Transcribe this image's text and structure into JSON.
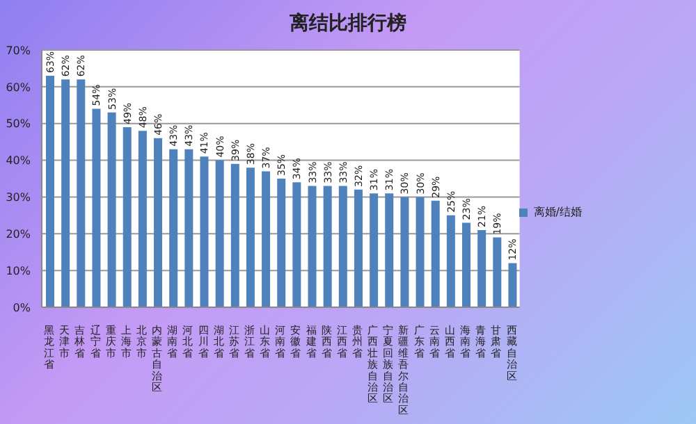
{
  "chart_data": {
    "type": "bar",
    "title": "离结比排行榜",
    "categories": [
      "黑龙江省",
      "天津市",
      "吉林省",
      "辽宁省",
      "重庆市",
      "上海市",
      "北京市",
      "内蒙古自治区",
      "湖南省",
      "河北省",
      "四川省",
      "湖北省",
      "江苏省",
      "浙江省",
      "山东省",
      "河南省",
      "安徽省",
      "福建省",
      "陕西省",
      "江西省",
      "贵州省",
      "广西壮族自治区",
      "宁夏回族自治区",
      "新疆维吾尔自治区",
      "广东省",
      "云南省",
      "山西省",
      "海南省",
      "青海省",
      "甘肃省",
      "西藏自治区"
    ],
    "series": [
      {
        "name": "离婚/结婚",
        "color": "#4f81bd",
        "values": [
          63,
          62,
          62,
          54,
          53,
          49,
          48,
          46,
          43,
          43,
          41,
          40,
          39,
          38,
          37,
          35,
          34,
          33,
          33,
          33,
          32,
          31,
          31,
          30,
          30,
          29,
          25,
          23,
          21,
          19,
          12
        ]
      }
    ],
    "ylim": [
      0,
      70
    ],
    "yticks": [
      {
        "value": 0,
        "label": "0%"
      },
      {
        "value": 10,
        "label": "10%"
      },
      {
        "value": 20,
        "label": "20%"
      },
      {
        "value": 30,
        "label": "30%"
      },
      {
        "value": 40,
        "label": "40%"
      },
      {
        "value": 50,
        "label": "50%"
      },
      {
        "value": 60,
        "label": "60%"
      },
      {
        "value": 70,
        "label": "70%"
      }
    ],
    "value_labels": [
      "63%",
      "62%",
      "62%",
      "54%",
      "53%",
      "49%",
      "48%",
      "46%",
      "43%",
      "43%",
      "41%",
      "40%",
      "39%",
      "38%",
      "37%",
      "35%",
      "34%",
      "33%",
      "33%",
      "33%",
      "32%",
      "31%",
      "31%",
      "30%",
      "30%",
      "29%",
      "25%",
      "23%",
      "21%",
      "19%",
      "12%"
    ],
    "grid": "y",
    "legend": "right"
  }
}
